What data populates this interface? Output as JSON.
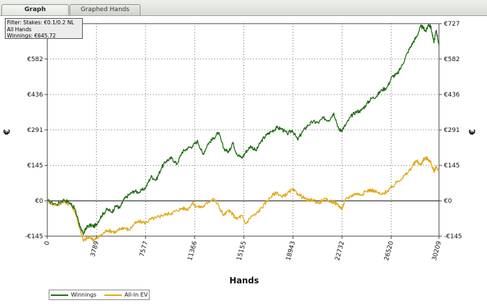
{
  "tabs": [
    {
      "label": "Graph",
      "active": true
    },
    {
      "label": "Graphed Hands",
      "active": false
    }
  ],
  "info": {
    "filter": "Filter: Stakes: €0.1/0.2 NL",
    "hands": "All Hands",
    "winnings": "Winnings: €645.72"
  },
  "colors": {
    "winnings": "#1e6b12",
    "allin_ev": "#e0a818",
    "zero_line": "#000000",
    "grid": "#666666"
  },
  "chart_data": {
    "type": "line",
    "xlabel": "Hands",
    "ylabel": "€",
    "ylabel_right": "€",
    "xlim": [
      0,
      30209
    ],
    "ylim": [
      -145,
      727
    ],
    "xticks": [
      0,
      3789,
      7577,
      11366,
      15155,
      18943,
      22732,
      26520,
      30209
    ],
    "yticks": [
      {
        "value": -145,
        "label": "-€145"
      },
      {
        "value": 0,
        "label": "€0"
      },
      {
        "value": 145,
        "label": "€145"
      },
      {
        "value": 291,
        "label": "€291"
      },
      {
        "value": 436,
        "label": "€436"
      },
      {
        "value": 582,
        "label": "€582"
      },
      {
        "value": 727,
        "label": "€727"
      }
    ],
    "grid": true,
    "legend_position": "bottom-left",
    "series": [
      {
        "name": "Winnings",
        "color": "#1e6b12",
        "x": [
          0,
          700,
          1300,
          1800,
          2100,
          2400,
          2600,
          2800,
          3000,
          3300,
          3600,
          3800,
          4200,
          4600,
          5000,
          5300,
          5600,
          5900,
          6300,
          6700,
          7100,
          7600,
          8000,
          8400,
          8800,
          9200,
          9600,
          10000,
          10400,
          10800,
          11200,
          11600,
          12000,
          12400,
          12800,
          13200,
          13600,
          14000,
          14300,
          14600,
          15000,
          15300,
          15700,
          16100,
          16500,
          16900,
          17300,
          17700,
          18100,
          18500,
          18900,
          19300,
          19700,
          20100,
          20500,
          20900,
          21300,
          21700,
          22100,
          22500,
          22700,
          23000,
          23400,
          23800,
          24200,
          24600,
          25000,
          25400,
          25800,
          26200,
          26600,
          27000,
          27400,
          27800,
          28200,
          28500,
          28800,
          29000,
          29200,
          29400,
          29600,
          29800,
          30000,
          30209
        ],
        "values": [
          0,
          -15,
          5,
          -10,
          -30,
          -80,
          -120,
          -135,
          -110,
          -100,
          -105,
          -95,
          -60,
          -35,
          -45,
          -20,
          -30,
          5,
          25,
          40,
          35,
          55,
          100,
          85,
          135,
          165,
          175,
          150,
          200,
          215,
          225,
          245,
          190,
          235,
          255,
          280,
          215,
          200,
          240,
          195,
          175,
          200,
          225,
          205,
          245,
          270,
          285,
          300,
          295,
          275,
          290,
          250,
          285,
          310,
          325,
          320,
          340,
          330,
          360,
          290,
          290,
          310,
          345,
          365,
          370,
          395,
          420,
          430,
          455,
          465,
          510,
          520,
          560,
          610,
          650,
          675,
          715,
          710,
          695,
          725,
          710,
          650,
          700,
          640
        ]
      },
      {
        "name": "All-In EV",
        "color": "#e0a818",
        "x": [
          0,
          700,
          1300,
          1800,
          2100,
          2400,
          2600,
          2800,
          3000,
          3300,
          3600,
          3800,
          4200,
          4600,
          5000,
          5300,
          5600,
          5900,
          6300,
          6700,
          7100,
          7600,
          8000,
          8400,
          8800,
          9200,
          9600,
          10000,
          10400,
          10800,
          11200,
          11600,
          12000,
          12400,
          12800,
          13200,
          13600,
          14000,
          14300,
          14600,
          15000,
          15300,
          15700,
          16100,
          16500,
          16900,
          17300,
          17700,
          18100,
          18500,
          18900,
          19300,
          19700,
          20100,
          20500,
          20900,
          21300,
          21700,
          22100,
          22500,
          22700,
          23000,
          23400,
          23800,
          24200,
          24600,
          25000,
          25400,
          25800,
          26200,
          26600,
          27000,
          27400,
          27800,
          28200,
          28500,
          28800,
          29000,
          29200,
          29400,
          29600,
          29800,
          30000,
          30209
        ],
        "values": [
          0,
          -20,
          -5,
          -15,
          -40,
          -95,
          -130,
          -165,
          -155,
          -150,
          -160,
          -155,
          -140,
          -120,
          -125,
          -130,
          -115,
          -110,
          -120,
          -95,
          -85,
          -90,
          -75,
          -70,
          -60,
          -55,
          -50,
          -40,
          -30,
          -35,
          -10,
          -25,
          -25,
          -5,
          10,
          -20,
          -60,
          -40,
          -55,
          -75,
          -60,
          -95,
          -65,
          -55,
          -30,
          -5,
          20,
          35,
          15,
          30,
          45,
          30,
          15,
          0,
          5,
          -10,
          5,
          0,
          -5,
          -20,
          -35,
          5,
          20,
          30,
          25,
          40,
          45,
          35,
          25,
          40,
          55,
          80,
          95,
          115,
          145,
          165,
          145,
          170,
          175,
          170,
          155,
          120,
          140,
          125
        ]
      }
    ]
  }
}
